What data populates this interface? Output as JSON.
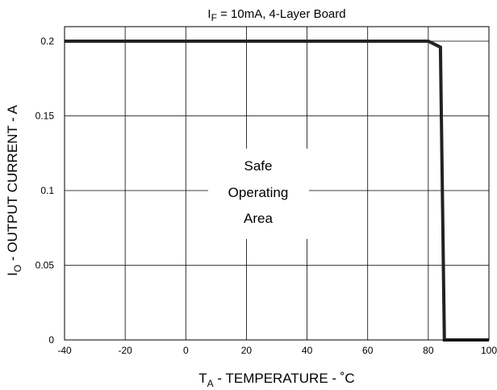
{
  "chart_data": {
    "type": "line",
    "title": {
      "symbol": "I",
      "subscript": "F",
      "rest": " =  10mA,  4-Layer  Board"
    },
    "xlabel": {
      "symbol": "T",
      "subscript": "A",
      "rest": " - TEMPERATURE - ˚C"
    },
    "ylabel": {
      "symbol": "I",
      "subscript": "O",
      "rest": " - OUTPUT CURRENT - A"
    },
    "xlim": [
      -40,
      100
    ],
    "ylim": [
      0,
      0.2
    ],
    "xticks": [
      "-40",
      "-20",
      "0",
      "20",
      "40",
      "60",
      "80",
      "100"
    ],
    "yticks": [
      "0",
      "0.05",
      "0.1",
      "0.15",
      "0.2"
    ],
    "grid": true,
    "annotation": [
      "Safe",
      "Operating",
      "Area"
    ],
    "line_color": "#222222",
    "series": [
      {
        "x": [
          -40,
          80,
          84,
          85.3,
          86,
          100
        ],
        "y": [
          0.2,
          0.2,
          0.196,
          0.0,
          0.0,
          0.0
        ]
      }
    ]
  }
}
